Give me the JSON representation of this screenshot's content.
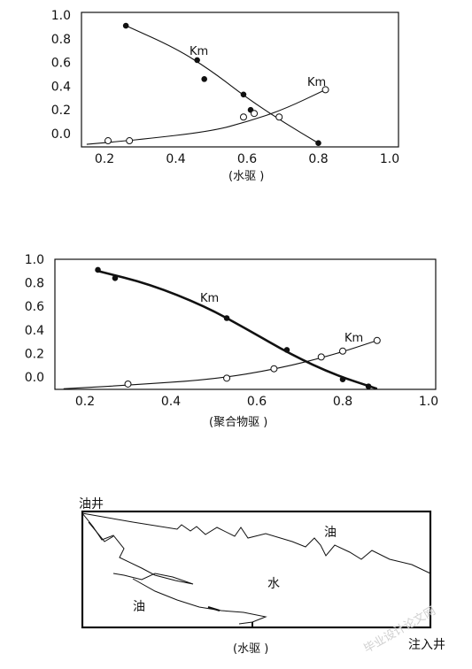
{
  "chart_data": [
    {
      "type": "line",
      "title": "",
      "xlabel": "(水驱 )",
      "ylabel": "",
      "xlim": [
        0.15,
        1.0
      ],
      "ylim": [
        -0.1,
        1.05
      ],
      "xticks": [
        "0.2",
        "0.4",
        "0.6",
        "0.8",
        "1.0"
      ],
      "yticks": [
        "1.0",
        "0.8",
        "0.6",
        "0.4",
        "0.2",
        "0.0"
      ],
      "grid": false,
      "series": [
        {
          "name": "Km",
          "marker": "filled-circle",
          "points": [
            [
              0.26,
              0.91
            ],
            [
              0.46,
              0.62
            ],
            [
              0.48,
              0.46
            ],
            [
              0.59,
              0.33
            ],
            [
              0.61,
              0.2
            ],
            [
              0.8,
              -0.08
            ]
          ],
          "curve": [
            [
              0.26,
              0.91
            ],
            [
              0.4,
              0.72
            ],
            [
              0.5,
              0.53
            ],
            [
              0.6,
              0.3
            ],
            [
              0.7,
              0.1
            ],
            [
              0.8,
              -0.08
            ]
          ]
        },
        {
          "name": "Km",
          "marker": "open-circle",
          "points": [
            [
              0.21,
              -0.06
            ],
            [
              0.27,
              -0.06
            ],
            [
              0.59,
              0.14
            ],
            [
              0.62,
              0.17
            ],
            [
              0.69,
              0.14
            ],
            [
              0.82,
              0.37
            ]
          ],
          "curve": [
            [
              0.15,
              -0.09
            ],
            [
              0.3,
              -0.05
            ],
            [
              0.5,
              0.02
            ],
            [
              0.6,
              0.1
            ],
            [
              0.7,
              0.2
            ],
            [
              0.82,
              0.37
            ]
          ]
        }
      ]
    },
    {
      "type": "line",
      "title": "",
      "xlabel": "(聚合物驱 )",
      "ylabel": "",
      "xlim": [
        0.15,
        1.0
      ],
      "ylim": [
        -0.1,
        1.05
      ],
      "xticks": [
        "0.2",
        "0.4",
        "0.6",
        "0.8",
        "1.0"
      ],
      "yticks": [
        "1.0",
        "0.8",
        "0.6",
        "0.4",
        "0.2",
        "0.0"
      ],
      "grid": false,
      "series": [
        {
          "name": "Km",
          "marker": "filled-circle",
          "points": [
            [
              0.23,
              0.91
            ],
            [
              0.27,
              0.84
            ],
            [
              0.53,
              0.5
            ],
            [
              0.67,
              0.23
            ],
            [
              0.8,
              -0.02
            ],
            [
              0.86,
              -0.08
            ]
          ],
          "curve": [
            [
              0.23,
              0.9
            ],
            [
              0.35,
              0.79
            ],
            [
              0.48,
              0.6
            ],
            [
              0.58,
              0.4
            ],
            [
              0.68,
              0.19
            ],
            [
              0.78,
              0.02
            ],
            [
              0.88,
              -0.1
            ]
          ]
        },
        {
          "name": "Km",
          "marker": "open-circle",
          "points": [
            [
              0.3,
              -0.06
            ],
            [
              0.53,
              -0.01
            ],
            [
              0.64,
              0.07
            ],
            [
              0.75,
              0.17
            ],
            [
              0.8,
              0.22
            ],
            [
              0.88,
              0.31
            ]
          ],
          "curve": [
            [
              0.15,
              -0.1
            ],
            [
              0.3,
              -0.07
            ],
            [
              0.5,
              -0.02
            ],
            [
              0.65,
              0.07
            ],
            [
              0.78,
              0.19
            ],
            [
              0.88,
              0.31
            ]
          ]
        }
      ]
    }
  ],
  "sketch": {
    "well_top": "油井",
    "well_bottom": "注入井",
    "oil_upper": "油",
    "water": "水",
    "oil_lower": "油",
    "caption": "(水驱 )"
  },
  "watermark": "毕业设计论文网"
}
